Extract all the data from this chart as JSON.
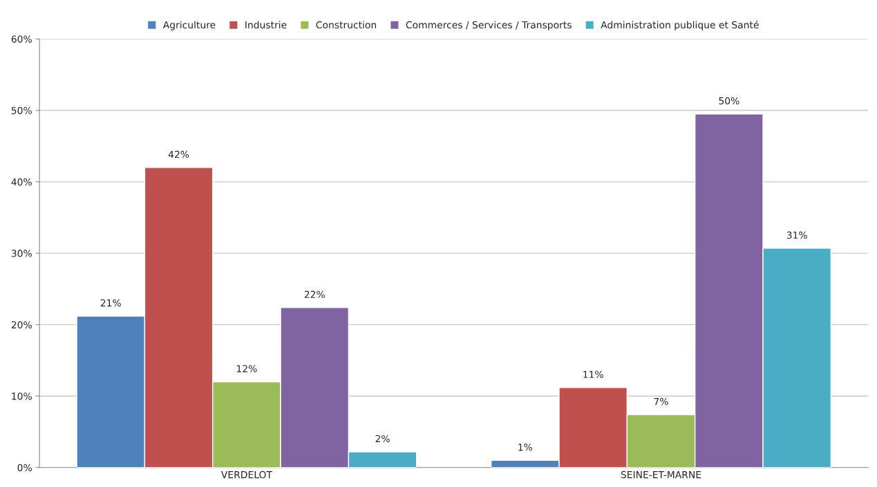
{
  "chart_data": {
    "type": "bar",
    "categories": [
      "VERDELOT",
      "SEINE-ET-MARNE"
    ],
    "series": [
      {
        "name": "Agriculture",
        "color": "#4f81bd",
        "values": [
          21.2,
          1.0
        ],
        "value_labels": [
          "21%",
          "1%"
        ]
      },
      {
        "name": "Industrie",
        "color": "#c0504d",
        "values": [
          42.0,
          11.2
        ],
        "value_labels": [
          "42%",
          "11%"
        ]
      },
      {
        "name": "Construction",
        "color": "#9bbb59",
        "values": [
          12.0,
          7.4
        ],
        "value_labels": [
          "12%",
          "7%"
        ]
      },
      {
        "name": "Commerces / Services / Transports",
        "color": "#8064a2",
        "values": [
          22.4,
          49.5
        ],
        "value_labels": [
          "22%",
          "50%"
        ]
      },
      {
        "name": "Administration publique et Santé",
        "color": "#4bacc6",
        "values": [
          2.2,
          30.7
        ],
        "value_labels": [
          "2%",
          "31%"
        ]
      }
    ],
    "ylim": [
      0,
      60
    ],
    "yticks": [
      {
        "value": 0,
        "label": "0%"
      },
      {
        "value": 10,
        "label": "10%"
      },
      {
        "value": 20,
        "label": "20%"
      },
      {
        "value": 30,
        "label": "30%"
      },
      {
        "value": 40,
        "label": "40%"
      },
      {
        "value": 50,
        "label": "50%"
      },
      {
        "value": 60,
        "label": "60%"
      }
    ],
    "grid": "y",
    "legend": "top"
  }
}
